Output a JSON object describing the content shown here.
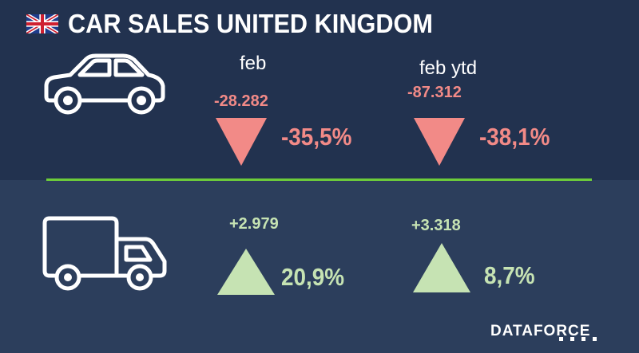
{
  "title": "CAR SALES UNITED KINGDOM",
  "flag_icon": "uk-flag-icon",
  "columns": {
    "month": "feb",
    "ytd": "feb ytd"
  },
  "cars": {
    "icon": "car-icon",
    "feb": {
      "abs": "-28.282",
      "pct": "-35,5%",
      "direction": "down"
    },
    "ytd": {
      "abs": "-87.312",
      "pct": "-38,1%",
      "direction": "up-down-down"
    }
  },
  "lcv": {
    "icon": "truck-icon",
    "feb": {
      "abs": "+2.979",
      "pct": "20,9%",
      "direction": "up"
    },
    "ytd": {
      "abs": "+3.318",
      "pct": "8,7%",
      "direction": "up"
    }
  },
  "brand": "DATAFORCE",
  "colors": {
    "background_top": "#22324f",
    "background_bottom": "#2c3e5c",
    "divider": "#6dcc3a",
    "negative": "#f28a87",
    "positive": "#c6e3b3"
  }
}
